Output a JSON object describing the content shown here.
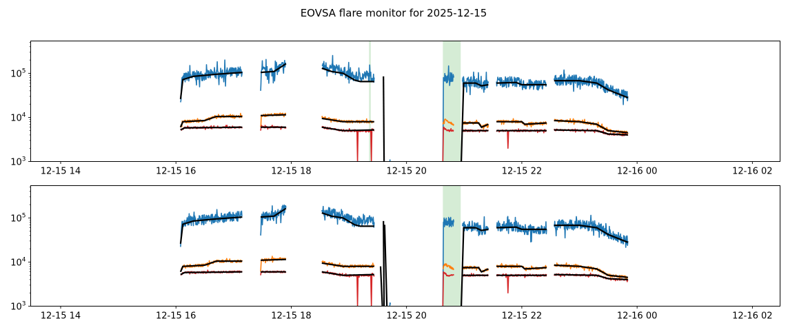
{
  "chart_data": {
    "type": "line",
    "title": "EOVSA flare monitor for 2025-12-15",
    "xlabel": "",
    "ylabel": "",
    "yscale": "log",
    "ylim": [
      1000,
      540000
    ],
    "xlim_hours": [
      13.48,
      26.48
    ],
    "yticks": [
      {
        "value": 1000,
        "base": "10",
        "exp": "3"
      },
      {
        "value": 10000,
        "base": "10",
        "exp": "4"
      },
      {
        "value": 100000,
        "base": "10",
        "exp": "5"
      }
    ],
    "xticks": [
      {
        "hour": 14,
        "label": "12-15 14"
      },
      {
        "hour": 16,
        "label": "12-15 16"
      },
      {
        "hour": 18,
        "label": "12-15 18"
      },
      {
        "hour": 20,
        "label": "12-15 20"
      },
      {
        "hour": 22,
        "label": "12-15 22"
      },
      {
        "hour": 24,
        "label": "12-16 00"
      },
      {
        "hour": 26,
        "label": "12-16 02"
      }
    ],
    "grid": false,
    "span_color": "#2ca02c",
    "series": [
      {
        "name": "blue",
        "color": "#1f77b4",
        "noise": 0.12,
        "segments": [
          [
            [
              16.08,
              22000
            ],
            [
              16.1,
              70000
            ],
            [
              16.2,
              85000
            ],
            [
              16.5,
              90000
            ],
            [
              16.8,
              100000
            ],
            [
              17.15,
              110000
            ]
          ],
          [
            [
              17.47,
              40000
            ],
            [
              17.48,
              110000
            ],
            [
              17.7,
              110000
            ],
            [
              17.8,
              130000
            ],
            [
              17.91,
              170000
            ]
          ],
          [
            [
              18.53,
              150000
            ],
            [
              18.7,
              130000
            ],
            [
              18.9,
              110000
            ],
            [
              19.1,
              80000
            ],
            [
              19.3,
              90000
            ],
            [
              19.44,
              80000
            ]
          ],
          [
            [
              19.71,
              1000
            ],
            [
              19.72,
              1100
            ]
          ],
          [
            [
              20.63,
              1000
            ],
            [
              20.64,
              80000
            ],
            [
              20.82,
              80000
            ]
          ],
          [
            [
              20.97,
              65000
            ],
            [
              21.2,
              65000
            ],
            [
              21.3,
              50000
            ],
            [
              21.42,
              60000
            ]
          ],
          [
            [
              21.56,
              65000
            ],
            [
              21.9,
              65000
            ],
            [
              22.0,
              55000
            ],
            [
              22.43,
              55000
            ]
          ],
          [
            [
              22.56,
              70000
            ],
            [
              23.0,
              70000
            ],
            [
              23.3,
              65000
            ],
            [
              23.5,
              45000
            ],
            [
              23.7,
              35000
            ],
            [
              23.84,
              30000
            ]
          ]
        ]
      },
      {
        "name": "orange",
        "color": "#ff7f0e",
        "noise": 0.03,
        "segments": [
          [
            [
              16.08,
              6000
            ],
            [
              16.12,
              8000
            ],
            [
              16.5,
              8500
            ],
            [
              16.7,
              10500
            ],
            [
              17.15,
              10500
            ]
          ],
          [
            [
              17.47,
              6000
            ],
            [
              17.48,
              11000
            ],
            [
              17.91,
              12000
            ]
          ],
          [
            [
              18.53,
              10000
            ],
            [
              18.9,
              8000
            ],
            [
              19.44,
              8000
            ]
          ],
          [
            [
              20.63,
              7000
            ],
            [
              20.66,
              9000
            ],
            [
              20.82,
              7000
            ]
          ],
          [
            [
              20.97,
              7500
            ],
            [
              21.25,
              7500
            ],
            [
              21.3,
              6000
            ],
            [
              21.42,
              7000
            ]
          ],
          [
            [
              21.56,
              8000
            ],
            [
              22.0,
              8000
            ],
            [
              22.05,
              7000
            ],
            [
              22.43,
              7500
            ]
          ],
          [
            [
              22.56,
              8500
            ],
            [
              23.0,
              8000
            ],
            [
              23.3,
              7000
            ],
            [
              23.5,
              5000
            ],
            [
              23.84,
              4500
            ]
          ]
        ]
      },
      {
        "name": "red",
        "color": "#d62728",
        "noise": 0.02,
        "segments": [
          [
            [
              16.08,
              5200
            ],
            [
              16.15,
              5800
            ],
            [
              17.15,
              6000
            ]
          ],
          [
            [
              17.47,
              5000
            ],
            [
              17.48,
              6000
            ],
            [
              17.91,
              6000
            ]
          ],
          [
            [
              18.53,
              6000
            ],
            [
              18.9,
              5000
            ],
            [
              19.14,
              5000
            ],
            [
              19.15,
              1000
            ],
            [
              19.16,
              5000
            ],
            [
              19.38,
              5000
            ],
            [
              19.39,
              1000
            ],
            [
              19.4,
              5500
            ],
            [
              19.44,
              5000
            ]
          ],
          [
            [
              20.63,
              1000
            ],
            [
              20.64,
              6000
            ],
            [
              20.7,
              5000
            ],
            [
              20.82,
              5000
            ]
          ],
          [
            [
              20.97,
              5000
            ],
            [
              21.42,
              5000
            ]
          ],
          [
            [
              21.56,
              5000
            ],
            [
              21.75,
              5000
            ],
            [
              21.76,
              2000
            ],
            [
              21.77,
              5000
            ],
            [
              22.43,
              5000
            ]
          ],
          [
            [
              22.56,
              5200
            ],
            [
              23.3,
              5000
            ],
            [
              23.5,
              4200
            ],
            [
              23.84,
              4000
            ]
          ]
        ]
      },
      {
        "name": "fit",
        "color": "#000000",
        "noise": 0,
        "segments": [
          [
            [
              16.08,
              26000
            ],
            [
              16.12,
              72000
            ],
            [
              16.3,
              85000
            ],
            [
              16.7,
              95000
            ],
            [
              17.15,
              105000
            ]
          ],
          [
            [
              17.47,
              105000
            ],
            [
              17.7,
              110000
            ],
            [
              17.91,
              165000
            ]
          ],
          [
            [
              18.53,
              130000
            ],
            [
              18.7,
              110000
            ],
            [
              18.9,
              100000
            ],
            [
              19.1,
              70000
            ],
            [
              19.2,
              65000
            ],
            [
              19.44,
              65000
            ]
          ],
          [
            [
              19.6,
              85000
            ],
            [
              19.61,
              1000
            ]
          ],
          [
            [
              20.95,
              1000
            ],
            [
              20.99,
              60000
            ],
            [
              21.2,
              60000
            ],
            [
              21.3,
              52000
            ],
            [
              21.42,
              55000
            ]
          ],
          [
            [
              21.56,
              60000
            ],
            [
              21.9,
              62000
            ],
            [
              22.0,
              55000
            ],
            [
              22.43,
              55000
            ]
          ],
          [
            [
              22.56,
              68000
            ],
            [
              23.0,
              68000
            ],
            [
              23.3,
              60000
            ],
            [
              23.5,
              42000
            ],
            [
              23.7,
              33000
            ],
            [
              23.84,
              28000
            ]
          ],
          [
            [
              16.08,
              6000
            ],
            [
              16.12,
              8000
            ],
            [
              16.5,
              8500
            ],
            [
              16.7,
              10500
            ],
            [
              17.15,
              10500
            ]
          ],
          [
            [
              17.47,
              11000
            ],
            [
              17.91,
              11500
            ]
          ],
          [
            [
              18.53,
              9500
            ],
            [
              18.9,
              8000
            ],
            [
              19.44,
              8000
            ]
          ],
          [
            [
              20.97,
              7500
            ],
            [
              21.25,
              7500
            ],
            [
              21.3,
              6000
            ],
            [
              21.42,
              7000
            ]
          ],
          [
            [
              21.56,
              8000
            ],
            [
              22.0,
              8000
            ],
            [
              22.05,
              7000
            ],
            [
              22.43,
              7500
            ]
          ],
          [
            [
              22.56,
              8500
            ],
            [
              23.0,
              8000
            ],
            [
              23.3,
              7000
            ],
            [
              23.5,
              5000
            ],
            [
              23.84,
              4500
            ]
          ],
          [
            [
              16.08,
              5200
            ],
            [
              16.15,
              5800
            ],
            [
              17.15,
              6000
            ]
          ],
          [
            [
              17.47,
              6000
            ],
            [
              17.91,
              6000
            ]
          ],
          [
            [
              18.53,
              6000
            ],
            [
              18.9,
              5000
            ],
            [
              19.44,
              5200
            ]
          ],
          [
            [
              20.97,
              5000
            ],
            [
              21.42,
              5000
            ]
          ],
          [
            [
              21.56,
              5000
            ],
            [
              22.43,
              5000
            ]
          ],
          [
            [
              22.56,
              5200
            ],
            [
              23.3,
              5000
            ],
            [
              23.5,
              4200
            ],
            [
              23.84,
              4000
            ]
          ]
        ]
      }
    ],
    "panels": [
      {
        "name": "top",
        "spans": [
          [
            19.35,
            19.38
          ],
          [
            20.63,
            20.94
          ]
        ],
        "extra": []
      },
      {
        "name": "bottom",
        "spans": [
          [
            20.63,
            20.94
          ]
        ],
        "extra": [
          {
            "color": "#000000",
            "segments": [
              [
                [
                  19.55,
                  8000
                ],
                [
                  19.58,
                  1000
                ]
              ],
              [
                [
                  19.62,
                  70000
                ],
                [
                  19.66,
                  1000
                ]
              ]
            ]
          }
        ]
      }
    ]
  }
}
